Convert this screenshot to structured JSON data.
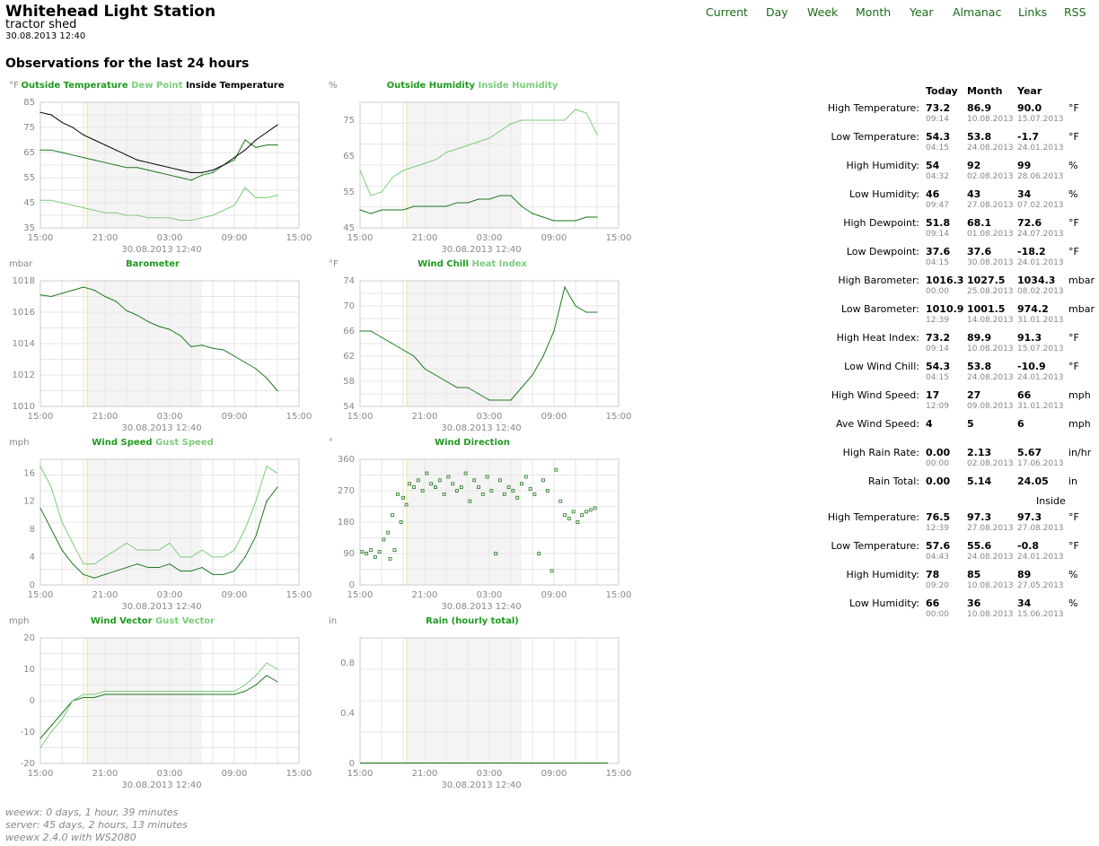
{
  "header": {
    "title": "Whitehead Light Station",
    "subtitle": "tractor shed",
    "timestamp": "30.08.2013 12:40"
  },
  "nav": [
    "Current",
    "Day",
    "Week",
    "Month",
    "Year",
    "Almanac",
    "Links",
    "RSS"
  ],
  "observations_title": "Observations for the last 24 hours",
  "colors": {
    "dark_green": "#1e7a1e",
    "light_green": "#7ccc7c",
    "nav_green": "#1a6b1a"
  },
  "chart_data": [
    {
      "type": "line",
      "unit": "°F",
      "title_parts": [
        "Outside Temperature",
        "Dew Point",
        "Inside Temperature"
      ],
      "ylim": [
        35,
        85
      ],
      "yticks": [
        35,
        45,
        55,
        65,
        75,
        85
      ],
      "xticks": [
        "15:00",
        "21:00",
        "03:00",
        "09:00",
        "15:00"
      ],
      "caption": "30.08.2013 12:40",
      "x_hours": [
        0,
        1,
        2,
        3,
        4,
        5,
        6,
        7,
        8,
        9,
        10,
        11,
        12,
        13,
        14,
        15,
        16,
        17,
        18,
        19,
        20,
        21,
        22
      ],
      "series": [
        {
          "name": "Outside Temperature",
          "values": [
            66,
            66,
            65,
            64,
            63,
            62,
            61,
            60,
            59,
            59,
            58,
            57,
            56,
            55,
            54,
            56,
            57,
            60,
            62,
            70,
            67,
            68,
            68
          ]
        },
        {
          "name": "Dew Point",
          "values": [
            46,
            46,
            45,
            44,
            43,
            42,
            41,
            41,
            40,
            40,
            39,
            39,
            39,
            38,
            38,
            39,
            40,
            42,
            44,
            51,
            47,
            47,
            48
          ]
        },
        {
          "name": "Inside Temperature",
          "values": [
            81,
            80,
            77,
            75,
            72,
            70,
            68,
            66,
            64,
            62,
            61,
            60,
            59,
            58,
            57,
            57,
            58,
            60,
            63,
            66,
            70,
            73,
            76
          ]
        }
      ]
    },
    {
      "type": "line",
      "unit": "%",
      "title_parts": [
        "Outside Humidity",
        "Inside Humidity"
      ],
      "ylim": [
        45,
        80
      ],
      "yticks": [
        45,
        55,
        65,
        75
      ],
      "xticks": [
        "15:00",
        "21:00",
        "03:00",
        "09:00",
        "15:00"
      ],
      "caption": "30.08.2013 12:40",
      "x_hours": [
        0,
        1,
        2,
        3,
        4,
        5,
        6,
        7,
        8,
        9,
        10,
        11,
        12,
        13,
        14,
        15,
        16,
        17,
        18,
        19,
        20,
        21,
        22
      ],
      "series": [
        {
          "name": "Outside Humidity",
          "values": [
            50,
            49,
            50,
            50,
            50,
            51,
            51,
            51,
            51,
            52,
            52,
            53,
            53,
            54,
            54,
            51,
            49,
            48,
            47,
            47,
            47,
            48,
            48
          ]
        },
        {
          "name": "Inside Humidity",
          "values": [
            61,
            54,
            55,
            59,
            61,
            62,
            63,
            64,
            66,
            67,
            68,
            69,
            70,
            72,
            74,
            75,
            75,
            75,
            75,
            75,
            78,
            77,
            71
          ]
        }
      ]
    },
    {
      "type": "line",
      "unit": "mbar",
      "title_parts": [
        "Barometer"
      ],
      "ylim": [
        1010,
        1018
      ],
      "yticks": [
        1010,
        1012,
        1014,
        1016,
        1018
      ],
      "xticks": [
        "15:00",
        "21:00",
        "03:00",
        "09:00",
        "15:00"
      ],
      "caption": "30.08.2013 12:40",
      "x_hours": [
        0,
        1,
        2,
        3,
        4,
        5,
        6,
        7,
        8,
        9,
        10,
        11,
        12,
        13,
        14,
        15,
        16,
        17,
        18,
        19,
        20,
        21,
        22
      ],
      "series": [
        {
          "name": "Barometer",
          "values": [
            1017.1,
            1017.0,
            1017.2,
            1017.4,
            1017.6,
            1017.4,
            1017.0,
            1016.7,
            1016.1,
            1015.8,
            1015.4,
            1015.1,
            1014.9,
            1014.5,
            1013.8,
            1013.9,
            1013.7,
            1013.6,
            1013.2,
            1012.8,
            1012.4,
            1011.8,
            1011.0
          ]
        }
      ]
    },
    {
      "type": "line",
      "unit": "°F",
      "title_parts": [
        "Wind Chill",
        "Heat Index"
      ],
      "ylim": [
        54,
        74
      ],
      "yticks": [
        54,
        58,
        62,
        66,
        70,
        74
      ],
      "xticks": [
        "15:00",
        "21:00",
        "03:00",
        "09:00",
        "15:00"
      ],
      "caption": "30.08.2013 12:40",
      "x_hours": [
        0,
        1,
        2,
        3,
        4,
        5,
        6,
        7,
        8,
        9,
        10,
        11,
        12,
        13,
        14,
        15,
        16,
        17,
        18,
        19,
        20,
        21,
        22
      ],
      "series": [
        {
          "name": "Wind Chill",
          "values": [
            66,
            66,
            65,
            64,
            63,
            62,
            60,
            59,
            58,
            57,
            57,
            56,
            55,
            55,
            55,
            57,
            59,
            62,
            66,
            73,
            70,
            69,
            69
          ]
        }
      ]
    },
    {
      "type": "line",
      "unit": "mph",
      "title_parts": [
        "Wind Speed",
        "Gust Speed"
      ],
      "ylim": [
        0,
        18
      ],
      "yticks": [
        0,
        4,
        8,
        12,
        16
      ],
      "xticks": [
        "15:00",
        "21:00",
        "03:00",
        "09:00",
        "15:00"
      ],
      "caption": "30.08.2013 12:40",
      "x_hours": [
        0,
        1,
        2,
        3,
        4,
        5,
        6,
        7,
        8,
        9,
        10,
        11,
        12,
        13,
        14,
        15,
        16,
        17,
        18,
        19,
        20,
        21,
        22
      ],
      "series": [
        {
          "name": "Wind Speed",
          "values": [
            11,
            8,
            5,
            3,
            1.5,
            1,
            1.5,
            2,
            2.5,
            3,
            2.5,
            2.5,
            3,
            2,
            2,
            2.5,
            1.5,
            1.5,
            2,
            4,
            7,
            12,
            14
          ]
        },
        {
          "name": "Gust Speed",
          "values": [
            17,
            14,
            9,
            6,
            3,
            3,
            4,
            5,
            6,
            5,
            5,
            5,
            6,
            4,
            4,
            5,
            4,
            4,
            5,
            8,
            12,
            17,
            16
          ]
        }
      ]
    },
    {
      "type": "scatter",
      "unit": "°",
      "title_parts": [
        "Wind Direction"
      ],
      "ylim": [
        0,
        360
      ],
      "yticks": [
        0,
        90,
        180,
        270,
        360
      ],
      "xticks": [
        "15:00",
        "21:00",
        "03:00",
        "09:00",
        "15:00"
      ],
      "caption": "30.08.2013 12:40",
      "x_hours": [
        0.2,
        0.6,
        1.0,
        1.4,
        1.8,
        2.2,
        2.6,
        2.8,
        3.0,
        3.2,
        3.5,
        3.8,
        4.0,
        4.3,
        4.6,
        5.0,
        5.4,
        5.8,
        6.2,
        6.6,
        7.0,
        7.4,
        7.8,
        8.2,
        8.6,
        9.0,
        9.4,
        9.8,
        10.2,
        10.6,
        11.0,
        11.4,
        11.8,
        12.2,
        12.6,
        13.0,
        13.4,
        13.8,
        14.2,
        14.6,
        15.0,
        15.4,
        15.8,
        16.2,
        16.6,
        17.0,
        17.4,
        17.8,
        18.2,
        18.6,
        19.0,
        19.4,
        19.8,
        20.2,
        20.6,
        21.0,
        21.4,
        21.8
      ],
      "series": [
        {
          "name": "",
          "values": [
            95,
            90,
            100,
            80,
            95,
            130,
            150,
            75,
            200,
            100,
            260,
            180,
            250,
            230,
            290,
            280,
            300,
            270,
            320,
            290,
            280,
            300,
            260,
            310,
            290,
            270,
            280,
            320,
            240,
            300,
            280,
            260,
            310,
            270,
            90,
            300,
            260,
            280,
            270,
            250,
            290,
            310,
            275,
            260,
            90,
            300,
            270,
            40,
            330,
            240,
            200,
            190,
            210,
            180,
            200,
            210,
            215,
            220
          ]
        }
      ]
    },
    {
      "type": "line",
      "unit": "mph",
      "title_parts": [
        "Wind Vector",
        "Gust Vector"
      ],
      "ylim": [
        -20,
        20
      ],
      "yticks": [
        -20,
        -10,
        0,
        10,
        20
      ],
      "xticks": [
        "15:00",
        "21:00",
        "03:00",
        "09:00",
        "15:00"
      ],
      "caption": "30.08.2013 12:40",
      "x_hours": [
        0,
        1,
        2,
        3,
        4,
        5,
        6,
        7,
        8,
        9,
        10,
        11,
        12,
        13,
        14,
        15,
        16,
        17,
        18,
        19,
        20,
        21,
        22
      ],
      "series": [
        {
          "name": "Wind Vector",
          "values": [
            -12,
            -8,
            -4,
            0,
            1,
            1,
            2,
            2,
            2,
            2,
            2,
            2,
            2,
            2,
            2,
            2,
            2,
            2,
            2,
            3,
            5,
            8,
            6
          ]
        },
        {
          "name": "Gust Vector",
          "values": [
            -15,
            -10,
            -6,
            0,
            2,
            2,
            3,
            3,
            3,
            3,
            3,
            3,
            3,
            3,
            3,
            3,
            3,
            3,
            3,
            5,
            8,
            12,
            10
          ]
        }
      ]
    },
    {
      "type": "bar",
      "unit": "in",
      "title_parts": [
        "Rain (hourly total)"
      ],
      "ylim": [
        0,
        1.0
      ],
      "yticks": [
        0.0,
        0.4,
        0.8
      ],
      "xticks": [
        "15:00",
        "21:00",
        "03:00",
        "09:00",
        "15:00"
      ],
      "caption": "30.08.2013 12:40",
      "x_hours": [
        0,
        1,
        2,
        3,
        4,
        5,
        6,
        7,
        8,
        9,
        10,
        11,
        12,
        13,
        14,
        15,
        16,
        17,
        18,
        19,
        20,
        21,
        22
      ],
      "series": [
        {
          "name": "Rain (hourly total)",
          "values": [
            0,
            0,
            0,
            0,
            0,
            0,
            0,
            0,
            0,
            0,
            0,
            0,
            0,
            0,
            0,
            0,
            0,
            0,
            0,
            0,
            0,
            0,
            0
          ]
        }
      ]
    }
  ],
  "stats": {
    "headers": [
      "Today",
      "Month",
      "Year"
    ],
    "rows": [
      {
        "label": "High Temperature:",
        "today": "73.2",
        "month": "86.9",
        "year": "90.0",
        "unit": "°F",
        "today_date": "09:14",
        "month_date": "10.08.2013",
        "year_date": "15.07.2013"
      },
      {
        "label": "Low Temperature:",
        "today": "54.3",
        "month": "53.8",
        "year": "-1.7",
        "unit": "°F",
        "today_date": "04:15",
        "month_date": "24.08.2013",
        "year_date": "24.01.2013"
      },
      {
        "label": "High Humidity:",
        "today": "54",
        "month": "92",
        "year": "99",
        "unit": "%",
        "today_date": "04:32",
        "month_date": "02.08.2013",
        "year_date": "28.06.2013"
      },
      {
        "label": "Low Humidity:",
        "today": "46",
        "month": "43",
        "year": "34",
        "unit": "%",
        "today_date": "09:47",
        "month_date": "27.08.2013",
        "year_date": "07.02.2013"
      },
      {
        "label": "High Dewpoint:",
        "today": "51.8",
        "month": "68.1",
        "year": "72.6",
        "unit": "°F",
        "today_date": "09:14",
        "month_date": "01.08.2013",
        "year_date": "24.07.2013"
      },
      {
        "label": "Low Dewpoint:",
        "today": "37.6",
        "month": "37.6",
        "year": "-18.2",
        "unit": "°F",
        "today_date": "04:15",
        "month_date": "30.08.2013",
        "year_date": "24.01.2013"
      },
      {
        "label": "High Barometer:",
        "today": "1016.3",
        "month": "1027.5",
        "year": "1034.3",
        "unit": "mbar",
        "today_date": "00:00",
        "month_date": "25.08.2013",
        "year_date": "08.02.2013"
      },
      {
        "label": "Low Barometer:",
        "today": "1010.9",
        "month": "1001.5",
        "year": "974.2",
        "unit": "mbar",
        "today_date": "12:39",
        "month_date": "14.08.2013",
        "year_date": "31.01.2013"
      },
      {
        "label": "High Heat Index:",
        "today": "73.2",
        "month": "89.9",
        "year": "91.3",
        "unit": "°F",
        "today_date": "09:14",
        "month_date": "10.08.2013",
        "year_date": "15.07.2013"
      },
      {
        "label": "Low Wind Chill:",
        "today": "54.3",
        "month": "53.8",
        "year": "-10.9",
        "unit": "°F",
        "today_date": "04:15",
        "month_date": "24.08.2013",
        "year_date": "24.01.2013"
      },
      {
        "label": "High Wind Speed:",
        "today": "17",
        "month": "27",
        "year": "66",
        "unit": "mph",
        "today_date": "12:09",
        "month_date": "09.08.2013",
        "year_date": "31.01.2013"
      },
      {
        "label": "Ave Wind Speed:",
        "today": "4",
        "month": "5",
        "year": "6",
        "unit": "mph",
        "today_date": "",
        "month_date": "",
        "year_date": ""
      },
      {
        "label": "High Rain Rate:",
        "today": "0.00",
        "month": "2.13",
        "year": "5.67",
        "unit": "in/hr",
        "today_date": "00:00",
        "month_date": "02.08.2013",
        "year_date": "17.06.2013"
      },
      {
        "label": "Rain Total:",
        "today": "0.00",
        "month": "5.14",
        "year": "24.05",
        "unit": "in",
        "today_date": "",
        "month_date": "",
        "year_date": ""
      }
    ],
    "inside_header": "Inside",
    "inside_rows": [
      {
        "label": "High Temperature:",
        "today": "76.5",
        "month": "97.3",
        "year": "97.3",
        "unit": "°F",
        "today_date": "12:39",
        "month_date": "27.08.2013",
        "year_date": "27.08.2013"
      },
      {
        "label": "Low Temperature:",
        "today": "57.6",
        "month": "55.6",
        "year": "-0.8",
        "unit": "°F",
        "today_date": "04:43",
        "month_date": "24.08.2013",
        "year_date": "24.01.2013"
      },
      {
        "label": "High Humidity:",
        "today": "78",
        "month": "85",
        "year": "89",
        "unit": "%",
        "today_date": "09:20",
        "month_date": "10.08.2013",
        "year_date": "27.05.2013"
      },
      {
        "label": "Low Humidity:",
        "today": "66",
        "month": "36",
        "year": "34",
        "unit": "%",
        "today_date": "00:00",
        "month_date": "10.08.2013",
        "year_date": "15.06.2013"
      }
    ]
  },
  "footer": [
    "weewx: 0 days, 1 hour, 39 minutes",
    "server: 45 days, 2 hours, 13 minutes",
    "weewx 2.4.0 with WS2080"
  ]
}
